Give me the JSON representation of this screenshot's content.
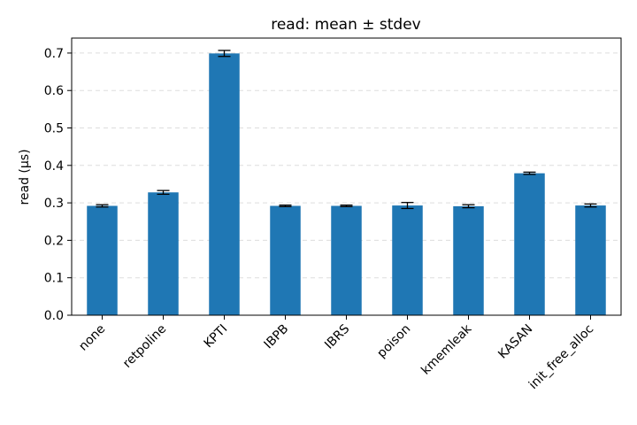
{
  "chart_data": {
    "type": "bar",
    "title": "read: mean ± stdev",
    "xlabel": "",
    "ylabel": "read (µs)",
    "categories": [
      "none",
      "retpoline",
      "KPTI",
      "IBPB",
      "IBRS",
      "poison",
      "kmemleak",
      "KASAN",
      "init_free_alloc"
    ],
    "values": [
      0.292,
      0.328,
      0.699,
      0.292,
      0.292,
      0.293,
      0.291,
      0.379,
      0.293
    ],
    "errors": [
      0.003,
      0.005,
      0.008,
      0.002,
      0.002,
      0.008,
      0.004,
      0.003,
      0.004
    ],
    "ylim": [
      0,
      0.74
    ],
    "yticks": [
      0.0,
      0.1,
      0.2,
      0.3,
      0.4,
      0.5,
      0.6,
      0.7
    ],
    "ytick_labels": [
      "0.0",
      "0.1",
      "0.2",
      "0.3",
      "0.4",
      "0.5",
      "0.6",
      "0.7"
    ],
    "grid": "y-dashed",
    "bar_color": "#1f77b4",
    "grid_color": "#dddddd"
  }
}
